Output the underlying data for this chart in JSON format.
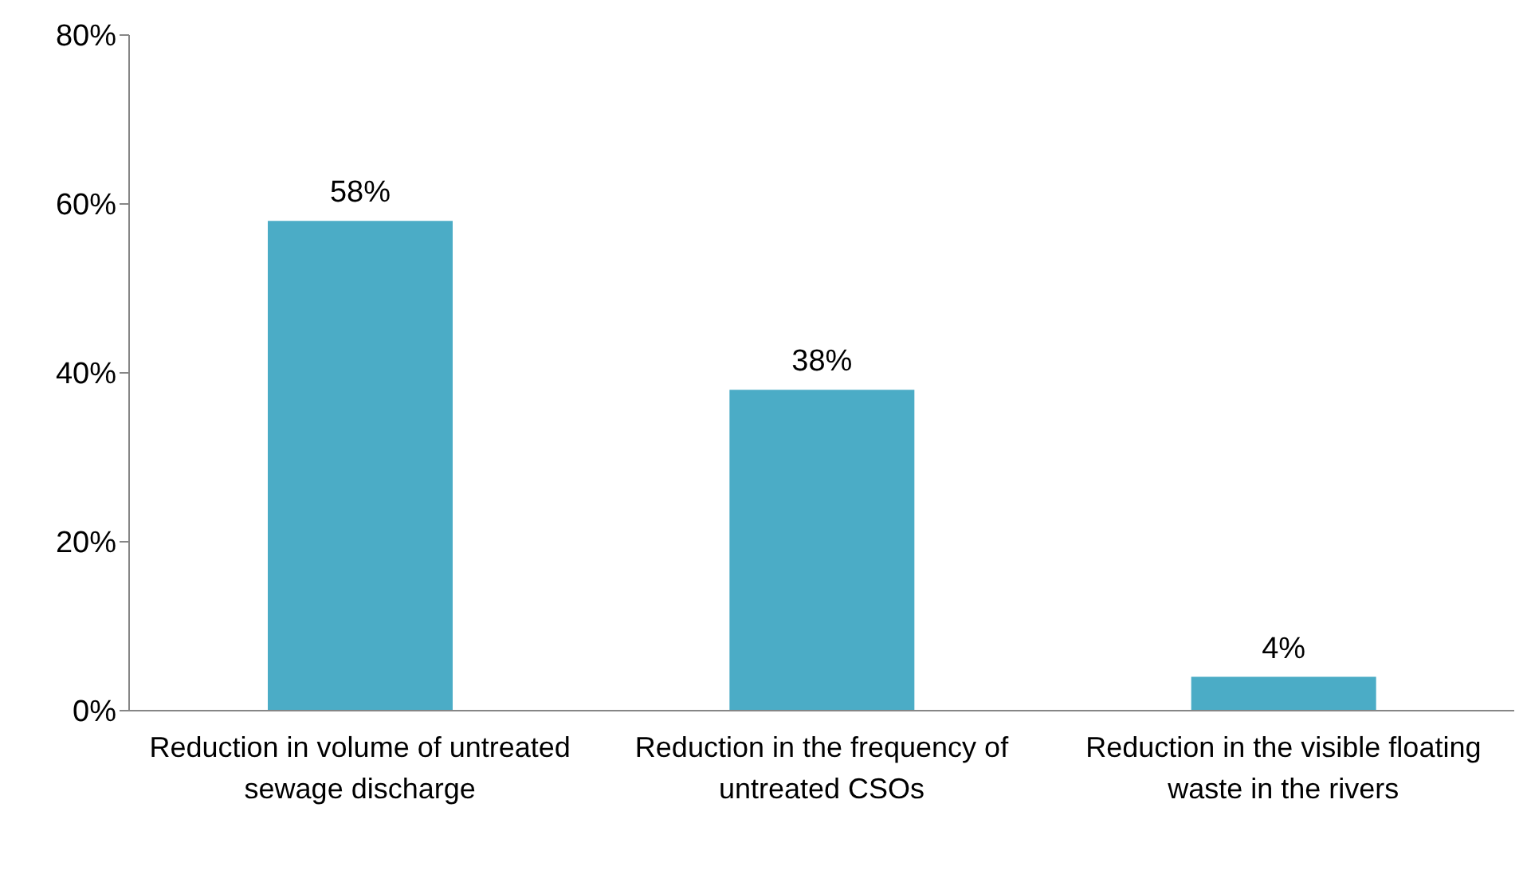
{
  "chart_data": {
    "type": "bar",
    "categories": [
      "Reduction in volume of untreated sewage discharge",
      "Reduction in the frequency of untreated CSOs",
      "Reduction in the visible floating waste in the rivers"
    ],
    "values": [
      58,
      38,
      4
    ],
    "value_labels": [
      "58%",
      "38%",
      "4%"
    ],
    "color": "#4bacc6",
    "ylim": [
      0,
      80
    ],
    "yticks": [
      {
        "value": 0,
        "label": "0%"
      },
      {
        "value": 20,
        "label": "20%"
      },
      {
        "value": 40,
        "label": "40%"
      },
      {
        "value": 60,
        "label": "60%"
      },
      {
        "value": 80,
        "label": "80%"
      }
    ],
    "grid": false,
    "legend": false
  }
}
